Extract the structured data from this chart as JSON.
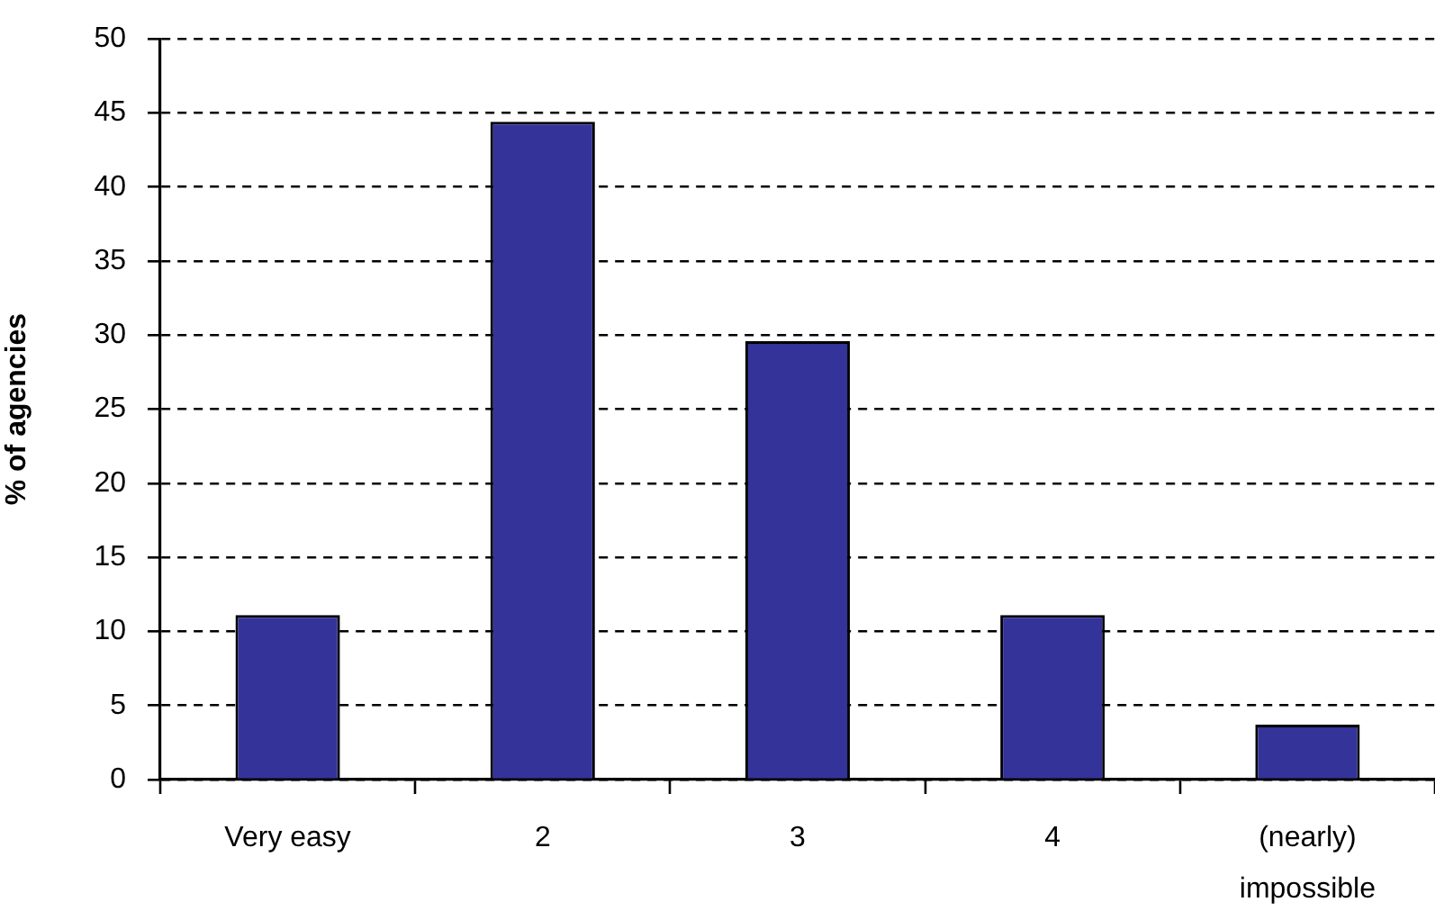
{
  "chart_data": {
    "type": "bar",
    "ylabel": "% of agencies",
    "categories": [
      "Very easy",
      "2",
      "3",
      "4",
      "(nearly) impossible"
    ],
    "values": [
      11.1,
      44.4,
      29.6,
      11.1,
      3.7
    ],
    "color": "#333399",
    "ylim": [
      0,
      50
    ],
    "yticks": [
      0,
      5,
      10,
      15,
      20,
      25,
      30,
      35,
      40,
      45,
      50
    ],
    "grid": "y"
  }
}
